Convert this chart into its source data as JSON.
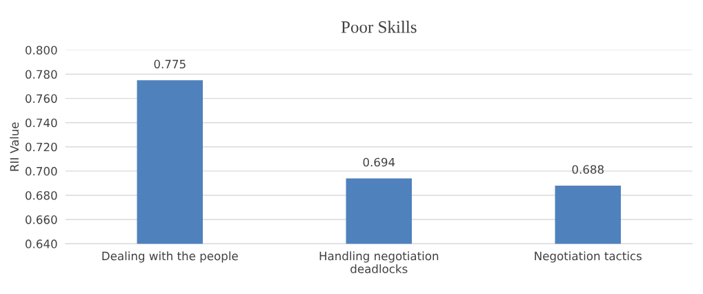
{
  "chart_data": {
    "type": "bar",
    "title": "Poor Skills",
    "ylabel": "RII Value",
    "categories": [
      "Dealing with the people",
      "Handling negotiation\ndeadlocks",
      "Negotiation tactics"
    ],
    "values": [
      0.775,
      0.694,
      0.688
    ],
    "color": "#4f81bd",
    "data_labels": true,
    "ylim": [
      0.64,
      0.8
    ],
    "yticks": [
      {
        "value": 0.64,
        "label": "0.640"
      },
      {
        "value": 0.66,
        "label": "0.660"
      },
      {
        "value": 0.68,
        "label": "0.680"
      },
      {
        "value": 0.7,
        "label": "0.700"
      },
      {
        "value": 0.72,
        "label": "0.720"
      },
      {
        "value": 0.74,
        "label": "0.740"
      },
      {
        "value": 0.76,
        "label": "0.760"
      },
      {
        "value": 0.78,
        "label": "0.780"
      },
      {
        "value": 0.8,
        "label": "0.800"
      }
    ],
    "grid": "y",
    "legend": false
  }
}
